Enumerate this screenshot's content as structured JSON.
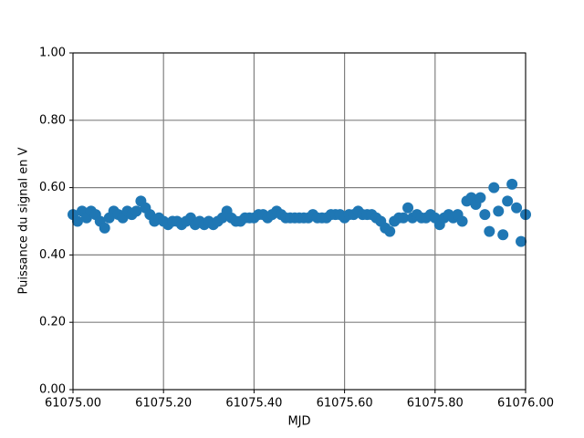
{
  "chart_data": {
    "type": "scatter",
    "xlabel": "MJD",
    "ylabel": "Puissance du signal en V",
    "x": [
      61075.0,
      61075.01,
      61075.02,
      61075.03,
      61075.04,
      61075.05,
      61075.06,
      61075.07,
      61075.08,
      61075.09,
      61075.1,
      61075.11,
      61075.12,
      61075.13,
      61075.14,
      61075.15,
      61075.16,
      61075.17,
      61075.18,
      61075.19,
      61075.2,
      61075.21,
      61075.22,
      61075.23,
      61075.24,
      61075.25,
      61075.26,
      61075.27,
      61075.28,
      61075.29,
      61075.3,
      61075.31,
      61075.32,
      61075.33,
      61075.34,
      61075.35,
      61075.36,
      61075.37,
      61075.38,
      61075.39,
      61075.4,
      61075.41,
      61075.42,
      61075.43,
      61075.44,
      61075.45,
      61075.46,
      61075.47,
      61075.48,
      61075.49,
      61075.5,
      61075.51,
      61075.52,
      61075.53,
      61075.54,
      61075.55,
      61075.56,
      61075.57,
      61075.58,
      61075.59,
      61075.6,
      61075.61,
      61075.62,
      61075.63,
      61075.64,
      61075.65,
      61075.66,
      61075.67,
      61075.68,
      61075.69,
      61075.7,
      61075.71,
      61075.72,
      61075.73,
      61075.74,
      61075.75,
      61075.76,
      61075.77,
      61075.78,
      61075.79,
      61075.8,
      61075.81,
      61075.82,
      61075.83,
      61075.84,
      61075.85,
      61075.86,
      61075.87,
      61075.88,
      61075.89,
      61075.9,
      61075.91,
      61075.92,
      61075.93,
      61075.94,
      61075.95,
      61075.96,
      61075.97,
      61075.98,
      61075.99,
      61076.0
    ],
    "values": [
      0.52,
      0.5,
      0.53,
      0.51,
      0.53,
      0.52,
      0.5,
      0.48,
      0.51,
      0.53,
      0.52,
      0.51,
      0.53,
      0.52,
      0.53,
      0.56,
      0.54,
      0.52,
      0.5,
      0.51,
      0.5,
      0.49,
      0.5,
      0.5,
      0.49,
      0.5,
      0.51,
      0.49,
      0.5,
      0.49,
      0.5,
      0.49,
      0.5,
      0.51,
      0.53,
      0.51,
      0.5,
      0.5,
      0.51,
      0.51,
      0.51,
      0.52,
      0.52,
      0.51,
      0.52,
      0.53,
      0.52,
      0.51,
      0.51,
      0.51,
      0.51,
      0.51,
      0.51,
      0.52,
      0.51,
      0.51,
      0.51,
      0.52,
      0.52,
      0.52,
      0.51,
      0.52,
      0.52,
      0.53,
      0.52,
      0.52,
      0.52,
      0.51,
      0.5,
      0.48,
      0.47,
      0.5,
      0.51,
      0.51,
      0.54,
      0.51,
      0.52,
      0.51,
      0.51,
      0.52,
      0.51,
      0.49,
      0.51,
      0.52,
      0.51,
      0.52,
      0.5,
      0.56,
      0.57,
      0.55,
      0.57,
      0.52,
      0.47,
      0.6,
      0.53,
      0.46,
      0.56,
      0.61,
      0.54,
      0.44,
      0.52
    ],
    "color": "#1f77b4",
    "xlim": [
      61075,
      61076
    ],
    "xticks": [
      {
        "value": 61075,
        "label": "61075.00"
      },
      {
        "value": 61075.2,
        "label": "61075.20"
      },
      {
        "value": 61075.4,
        "label": "61075.40"
      },
      {
        "value": 61075.6,
        "label": "61075.60"
      },
      {
        "value": 61075.8,
        "label": "61075.80"
      },
      {
        "value": 61076,
        "label": "61076.00"
      }
    ],
    "ylim": [
      0,
      1
    ],
    "yticks": [
      {
        "value": 0,
        "label": "0.00"
      },
      {
        "value": 0.2,
        "label": "0.20"
      },
      {
        "value": 0.4,
        "label": "0.40"
      },
      {
        "value": 0.6,
        "label": "0.60"
      },
      {
        "value": 0.8,
        "label": "0.80"
      },
      {
        "value": 1,
        "label": "1.00"
      }
    ],
    "grid": true
  }
}
